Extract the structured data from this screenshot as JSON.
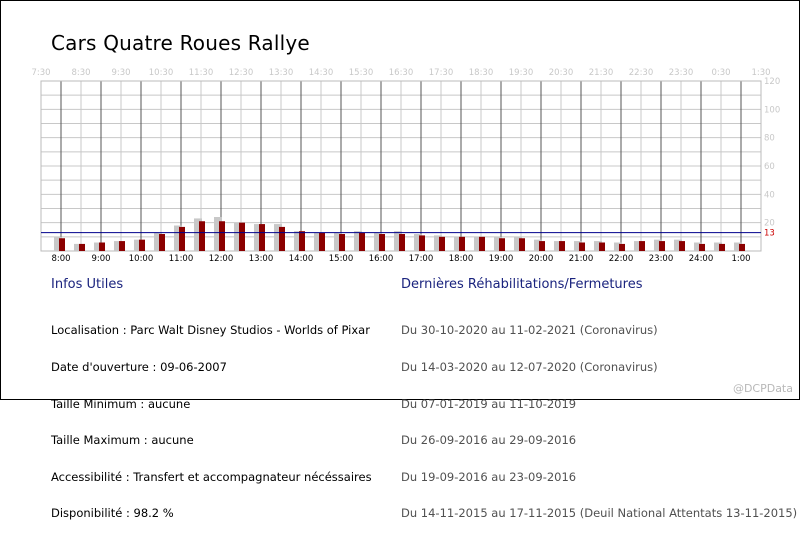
{
  "title": "Cars Quatre Roues Rallye",
  "chart_data": {
    "type": "bar",
    "top_ticks": [
      "7:30",
      "8:30",
      "9:30",
      "10:30",
      "11:30",
      "12:30",
      "13:30",
      "14:30",
      "15:30",
      "16:30",
      "17:30",
      "18:30",
      "19:30",
      "20:30",
      "21:30",
      "22:30",
      "23:30",
      "0:30",
      "1:30"
    ],
    "bottom_ticks": [
      "8:00",
      "9:00",
      "10:00",
      "11:00",
      "12:00",
      "13:00",
      "14:00",
      "15:00",
      "16:00",
      "17:00",
      "18:00",
      "19:00",
      "20:00",
      "21:00",
      "22:00",
      "23:00",
      "24:00",
      "1:00"
    ],
    "y_ticks": [
      20,
      40,
      60,
      80,
      100,
      120
    ],
    "ylim": [
      0,
      120
    ],
    "reference_value": 13,
    "reference_label": "13",
    "categories": [
      "8:00",
      "8:30",
      "9:00",
      "9:30",
      "10:00",
      "10:30",
      "11:00",
      "11:30",
      "12:00",
      "12:30",
      "13:00",
      "13:30",
      "14:00",
      "14:30",
      "15:00",
      "15:30",
      "16:00",
      "16:30",
      "17:00",
      "17:30",
      "18:00",
      "18:30",
      "19:00",
      "19:30",
      "20:00",
      "20:30",
      "21:00",
      "21:30",
      "22:00",
      "22:30",
      "23:00",
      "23:30",
      "24:00",
      "0:30",
      "1:00"
    ],
    "series": [
      {
        "values": [
          10,
          5,
          6,
          7,
          8,
          13,
          18,
          23,
          24,
          20,
          19,
          19,
          14,
          13,
          13,
          14,
          13,
          14,
          12,
          11,
          10,
          10,
          10,
          10,
          8,
          7,
          7,
          7,
          6,
          7,
          8,
          8,
          6,
          6,
          6
        ]
      },
      {
        "values": [
          9,
          5,
          6,
          7,
          8,
          12,
          17,
          21,
          21,
          20,
          19,
          17,
          14,
          13,
          12,
          13,
          12,
          12,
          11,
          10,
          10,
          10,
          9,
          9,
          7,
          7,
          6,
          6,
          5,
          7,
          7,
          7,
          5,
          5,
          5
        ]
      }
    ],
    "colors": {
      "series_a": "#c8c8c8",
      "series_b": "#8b0000",
      "reference": "#00008b",
      "grid": "#c8c8c8",
      "hour_line": "#555555"
    }
  },
  "infos": {
    "heading": "Infos Utiles",
    "lines": [
      "Localisation : Parc Walt Disney Studios - Worlds of Pixar",
      "Date d'ouverture : 09-06-2007",
      "Taille Minimum : aucune",
      "Taille Maximum : aucune",
      "Accessibilité : Transfert et accompagnateur nécéssaires",
      "Disponibilité : 98.2 %"
    ]
  },
  "rehabs": {
    "heading": "Dernières Réhabilitations/Fermetures",
    "lines": [
      "Du 30-10-2020 au 11-02-2021 (Coronavirus)",
      "Du 14-03-2020 au 12-07-2020 (Coronavirus)",
      "Du 07-01-2019 au 11-10-2019",
      "Du 26-09-2016 au 29-09-2016",
      "Du 19-09-2016 au 23-09-2016",
      "Du 14-11-2015 au 17-11-2015 (Deuil National Attentats 13-11-2015)"
    ]
  },
  "watermark": "@DCPData"
}
